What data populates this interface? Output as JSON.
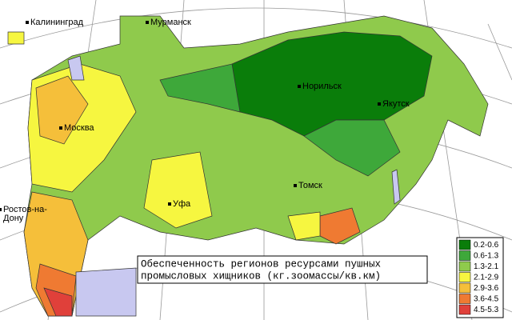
{
  "title_lines": [
    "Обеспеченность регионов ресурсами пушных",
    "промысловых хищников (кг.зоомассы/кв.км)"
  ],
  "cities": [
    {
      "label": [
        "Калининград"
      ]
    },
    {
      "label": [
        "Мурманск"
      ]
    },
    {
      "label": [
        "Москва"
      ]
    },
    {
      "label": [
        "Норильск"
      ]
    },
    {
      "label": [
        "Якутск"
      ]
    },
    {
      "label": [
        "Томск"
      ]
    },
    {
      "label": [
        "Уфа"
      ]
    },
    {
      "label": [
        "Ростов-на-",
        "Дону"
      ]
    }
  ],
  "legend": [
    {
      "label": "0.2-0.6",
      "color": "#0a7d0a"
    },
    {
      "label": "0.6-1.3",
      "color": "#3ea83a"
    },
    {
      "label": "1.3-2.1",
      "color": "#8fca4c"
    },
    {
      "label": "2.1-2.9",
      "color": "#f6f640"
    },
    {
      "label": "2.9-3.6",
      "color": "#f5bf3a"
    },
    {
      "label": "3.6-4.5",
      "color": "#ef7a32"
    },
    {
      "label": "4.5-5.3",
      "color": "#e0403a"
    }
  ]
}
